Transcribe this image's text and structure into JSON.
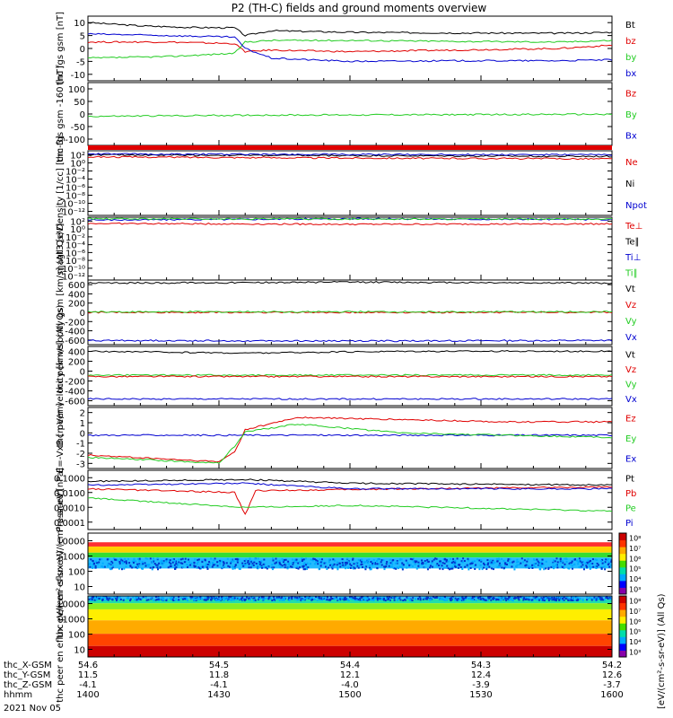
{
  "title": "P2 (TH-C) fields and ground moments overview",
  "date_label": "2021 Nov 05",
  "colorbar_label": "[eV/(cm²-s-sr-eV)] (All Qs)",
  "colorbar_ticks": [
    "10⁸",
    "10⁷",
    "10⁶",
    "10⁵",
    "10⁴",
    "10³"
  ],
  "colors": {
    "black": "#000000",
    "red": "#e00000",
    "green": "#22cc22",
    "blue": "#0000d0"
  },
  "chart_data": {
    "type": "line",
    "xticks": [
      "1400",
      "1430",
      "1500",
      "1530",
      "1600"
    ],
    "x_rows": [
      {
        "label": "thc_X-GSM",
        "values": [
          "54.6",
          "54.5",
          "54.4",
          "54.3",
          "54.2"
        ]
      },
      {
        "label": "thc_Y-GSM",
        "values": [
          "11.5",
          "11.8",
          "12.1",
          "12.4",
          "12.6"
        ]
      },
      {
        "label": "thc_Z-GSM",
        "values": [
          "-4.1",
          "-4.1",
          "-4.0",
          "-3.9",
          "-3.7"
        ]
      },
      {
        "label": "hhmm",
        "values": [
          "1400",
          "1430",
          "1500",
          "1530",
          "1600"
        ]
      }
    ],
    "panels": [
      {
        "ylabel": "thc fgs gsm [nT]",
        "yticks": [
          "10",
          "5",
          "0",
          "-5",
          "-10"
        ],
        "ylim": [
          -10,
          10
        ],
        "legend": [
          {
            "text": "Bt",
            "color": "#000000"
          },
          {
            "text": "bz",
            "color": "#e00000"
          },
          {
            "text": "by",
            "color": "#22cc22"
          },
          {
            "text": "bx",
            "color": "#0000d0"
          }
        ],
        "series": [
          {
            "color": "#000000",
            "points": [
              [
                0,
                8
              ],
              [
                10,
                7
              ],
              [
                20,
                6.5
              ],
              [
                28,
                6.4
              ],
              [
                30,
                4
              ],
              [
                35,
                5.5
              ],
              [
                50,
                5
              ],
              [
                70,
                4.8
              ],
              [
                90,
                4.7
              ],
              [
                100,
                5
              ]
            ]
          },
          {
            "color": "#e00000",
            "points": [
              [
                0,
                2
              ],
              [
                15,
                2
              ],
              [
                28,
                1.5
              ],
              [
                30,
                -1
              ],
              [
                35,
                -0.5
              ],
              [
                50,
                -1
              ],
              [
                70,
                -0.5
              ],
              [
                90,
                0
              ],
              [
                100,
                1
              ]
            ]
          },
          {
            "color": "#22cc22",
            "points": [
              [
                0,
                -3
              ],
              [
                15,
                -2.5
              ],
              [
                28,
                -1.5
              ],
              [
                30,
                2
              ],
              [
                35,
                2.5
              ],
              [
                50,
                2.5
              ],
              [
                70,
                2.2
              ],
              [
                90,
                2
              ],
              [
                100,
                2.5
              ]
            ]
          },
          {
            "color": "#0000d0",
            "points": [
              [
                0,
                4.5
              ],
              [
                15,
                4
              ],
              [
                28,
                3.5
              ],
              [
                30,
                0
              ],
              [
                35,
                -3
              ],
              [
                50,
                -4
              ],
              [
                70,
                -3.8
              ],
              [
                90,
                -3.8
              ],
              [
                100,
                -3.5
              ]
            ]
          }
        ]
      },
      {
        "ylabel": "thc fgs gsm -160 [nT]",
        "yticks": [
          "100",
          "50",
          "0",
          "-50",
          "-100"
        ],
        "ylim": [
          -130,
          130
        ],
        "legend": [
          {
            "text": "Bz",
            "color": "#e00000"
          },
          {
            "text": "By",
            "color": "#22cc22"
          },
          {
            "text": "Bx",
            "color": "#0000d0"
          }
        ],
        "series": [
          {
            "color": "#22cc22",
            "points": [
              [
                0,
                -10
              ],
              [
                30,
                -5
              ],
              [
                100,
                -1
              ]
            ]
          }
        ]
      },
      {
        "ylabel": "Density [1/cc] [cm-3]",
        "yticks": [
          "10²",
          "10⁰",
          "10⁻²",
          "10⁻⁴",
          "10⁻⁶",
          "10⁻⁸",
          "10⁻¹⁰",
          "10⁻¹²"
        ],
        "ylim": [
          -13,
          3
        ],
        "legend": [
          {
            "text": "Ne",
            "color": "#e00000"
          },
          {
            "text": "Ni",
            "color": "#000000"
          },
          {
            "text": "Npot",
            "color": "#0000d0"
          }
        ],
        "series": [
          {
            "color": "#000000",
            "points": [
              [
                0,
                2
              ],
              [
                50,
                1.8
              ],
              [
                100,
                1.6
              ]
            ]
          },
          {
            "color": "#e00000",
            "points": [
              [
                0,
                1.5
              ],
              [
                50,
                1.2
              ],
              [
                100,
                1
              ]
            ]
          },
          {
            "color": "#0000d0",
            "points": [
              [
                0,
                2.2
              ],
              [
                50,
                2.1
              ],
              [
                100,
                2
              ]
            ]
          }
        ]
      },
      {
        "ylabel": "magt3 [eV]",
        "yticks": [
          "10²",
          "10⁰",
          "10⁻²",
          "10⁻⁴",
          "10⁻⁶",
          "10⁻⁸",
          "10⁻¹⁰",
          "10⁻¹²"
        ],
        "ylim": [
          -13,
          3
        ],
        "legend": [
          {
            "text": "Te⊥",
            "color": "#e00000"
          },
          {
            "text": "Te∥",
            "color": "#000000"
          },
          {
            "text": "Ti⊥",
            "color": "#0000d0"
          },
          {
            "text": "Ti∥",
            "color": "#22cc22"
          }
        ],
        "series": [
          {
            "color": "#0000d0",
            "points": [
              [
                0,
                2.3
              ],
              [
                50,
                2.6
              ],
              [
                100,
                2.4
              ]
            ]
          },
          {
            "color": "#e00000",
            "points": [
              [
                0,
                1.4
              ],
              [
                50,
                1.2
              ],
              [
                100,
                1.3
              ]
            ]
          },
          {
            "color": "#22cc22",
            "points": [
              [
                0,
                2.6
              ],
              [
                100,
                2.5
              ]
            ]
          }
        ]
      },
      {
        "ylabel": "thc peir velocity gsm [km/s] (All Qs)",
        "yticks": [
          "600",
          "400",
          "200",
          "0",
          "-200",
          "-400",
          "-600"
        ],
        "ylim": [
          -620,
          620
        ],
        "legend": [
          {
            "text": "Vt",
            "color": "#000000"
          },
          {
            "text": "Vz",
            "color": "#e00000"
          },
          {
            "text": "Vy",
            "color": "#22cc22"
          },
          {
            "text": "Vx",
            "color": "#0000d0"
          }
        ],
        "series": [
          {
            "color": "#000000",
            "points": [
              [
                0,
                560
              ],
              [
                50,
                580
              ],
              [
                100,
                560
              ]
            ]
          },
          {
            "color": "#e00000",
            "points": [
              [
                0,
                0
              ],
              [
                100,
                0
              ]
            ]
          },
          {
            "color": "#22cc22",
            "points": [
              [
                0,
                10
              ],
              [
                100,
                10
              ]
            ]
          },
          {
            "color": "#0000d0",
            "points": [
              [
                0,
                -540
              ],
              [
                50,
                -550
              ],
              [
                100,
                -540
              ]
            ]
          }
        ]
      },
      {
        "ylabel": "thc peer velocity [km/s] (All Qs)",
        "yticks": [
          "400",
          "200",
          "0",
          "-200",
          "-400",
          "-600"
        ],
        "ylim": [
          -620,
          620
        ],
        "legend": [
          {
            "text": "Vt",
            "color": "#000000"
          },
          {
            "text": "Vz",
            "color": "#e00000"
          },
          {
            "text": "Vy",
            "color": "#22cc22"
          },
          {
            "text": "Vx",
            "color": "#0000d0"
          }
        ],
        "series": [
          {
            "color": "#000000",
            "points": [
              [
                0,
                520
              ],
              [
                30,
                480
              ],
              [
                60,
                520
              ],
              [
                100,
                520
              ]
            ]
          },
          {
            "color": "#22cc22",
            "points": [
              [
                0,
                20
              ],
              [
                100,
                20
              ]
            ]
          },
          {
            "color": "#e00000",
            "points": [
              [
                0,
                -10
              ],
              [
                100,
                -10
              ]
            ]
          },
          {
            "color": "#0000d0",
            "points": [
              [
                0,
                -480
              ],
              [
                50,
                -480
              ],
              [
                100,
                -480
              ]
            ]
          }
        ]
      },
      {
        "ylabel": "E=-VxB [mV/m]",
        "yticks": [
          "2",
          "1",
          "0",
          "-1",
          "-2",
          "-3"
        ],
        "ylim": [
          -3,
          2.5
        ],
        "legend": [
          {
            "text": "Ez",
            "color": "#e00000"
          },
          {
            "text": "Ey",
            "color": "#22cc22"
          },
          {
            "text": "Ex",
            "color": "#0000d0"
          }
        ],
        "series": [
          {
            "color": "#0000d0",
            "points": [
              [
                0,
                0
              ],
              [
                100,
                0
              ]
            ]
          },
          {
            "color": "#e00000",
            "points": [
              [
                0,
                -1.8
              ],
              [
                25,
                -2.4
              ],
              [
                28,
                -1.5
              ],
              [
                30,
                0.5
              ],
              [
                40,
                1.6
              ],
              [
                60,
                1.4
              ],
              [
                80,
                1.2
              ],
              [
                100,
                1.2
              ]
            ]
          },
          {
            "color": "#22cc22",
            "points": [
              [
                0,
                -2
              ],
              [
                25,
                -2.5
              ],
              [
                28,
                -1
              ],
              [
                30,
                0.3
              ],
              [
                40,
                1
              ],
              [
                60,
                0.2
              ],
              [
                80,
                0
              ],
              [
                100,
                -0.2
              ]
            ]
          }
        ]
      },
      {
        "ylabel": "Pressure [nPa]",
        "yticks": [
          "0.1000",
          "0.0100",
          "0.0010",
          "0.0001"
        ],
        "ylim": [
          -4,
          -0.8
        ],
        "legend": [
          {
            "text": "Pt",
            "color": "#000000"
          },
          {
            "text": "Pb",
            "color": "#e00000"
          },
          {
            "text": "Pe",
            "color": "#22cc22"
          },
          {
            "text": "Pi",
            "color": "#0000d0"
          }
        ],
        "series": [
          {
            "color": "#000000",
            "points": [
              [
                0,
                -1.4
              ],
              [
                30,
                -1.3
              ],
              [
                50,
                -1.5
              ],
              [
                100,
                -1.6
              ]
            ]
          },
          {
            "color": "#e00000",
            "points": [
              [
                0,
                -1.8
              ],
              [
                28,
                -2
              ],
              [
                30,
                -3.2
              ],
              [
                32,
                -1.9
              ],
              [
                60,
                -1.8
              ],
              [
                100,
                -1.7
              ]
            ]
          },
          {
            "color": "#0000d0",
            "points": [
              [
                0,
                -1.6
              ],
              [
                30,
                -1.5
              ],
              [
                50,
                -1.8
              ],
              [
                100,
                -1.8
              ]
            ]
          },
          {
            "color": "#22cc22",
            "points": [
              [
                0,
                -2.3
              ],
              [
                30,
                -2.8
              ],
              [
                50,
                -2.7
              ],
              [
                100,
                -3
              ]
            ]
          }
        ]
      },
      {
        "ylabel": "thc peir en eflux eV/(cm²-s-sr-eV)",
        "yticks": [
          "10000",
          "1000",
          "100",
          "10"
        ],
        "ylim": [
          0.5,
          4.5
        ],
        "spectrogram": "ion",
        "legend": [],
        "series": []
      },
      {
        "ylabel": "thc peer en eflux eV/(cm²-s-sr-eV)",
        "yticks": [
          "10000",
          "1000",
          "100",
          "10"
        ],
        "ylim": [
          0.5,
          4.5
        ],
        "spectrogram": "electron",
        "legend": [],
        "series": []
      }
    ]
  }
}
